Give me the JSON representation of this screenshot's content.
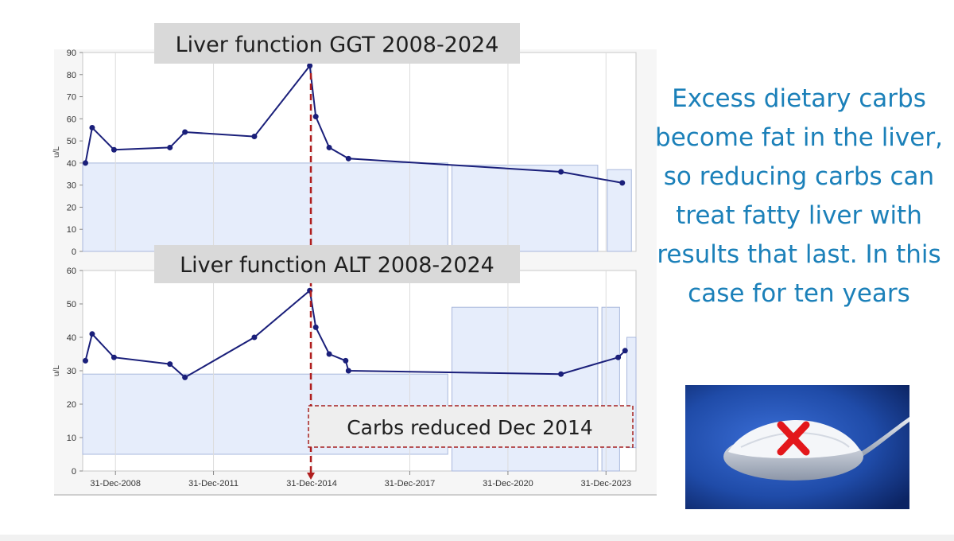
{
  "charts": [
    {
      "id": "ggt",
      "title": "Liver function GGT 2008-2024",
      "ylabel": "u/L",
      "yticks": [
        0,
        10,
        20,
        30,
        40,
        50,
        60,
        70,
        80,
        90
      ],
      "ylim": [
        0,
        90
      ]
    },
    {
      "id": "alt",
      "title": "Liver function ALT 2008-2024",
      "ylabel": "u/L",
      "yticks": [
        0,
        10,
        20,
        30,
        40,
        50,
        60
      ],
      "ylim": [
        0,
        60
      ]
    }
  ],
  "xticks": [
    "31-Dec-2008",
    "31-Dec-2011",
    "31-Dec-2014",
    "31-Dec-2017",
    "31-Dec-2020",
    "31-Dec-2023"
  ],
  "annotation": "Carbs reduced Dec 2014",
  "annotation_date": "2014-12-31",
  "right_text": "Excess dietary carbs become fat in the liver, so reducing carbs can treat fatty liver with results that last. In this case for ten years",
  "colors": {
    "line": "#1a1f7a",
    "reference_band_fill": "#e6edfb",
    "reference_band_stroke": "#a9b8dc",
    "marker_line": "#b01e1e",
    "text_accent": "#1b80b9",
    "title_box": "#d9d9d9"
  },
  "icons": {
    "photo": "sugar-spoon-photo",
    "mark": "red-x-icon"
  },
  "chart_data": [
    {
      "type": "line",
      "title": "Liver function GGT 2008-2024",
      "ylabel": "u/L",
      "ylim": [
        0,
        90
      ],
      "x_axis": "date",
      "x": [
        "2008-01-31",
        "2008-04-15",
        "2008-12-15",
        "2010-08-31",
        "2011-02-15",
        "2013-03-31",
        "2014-12-10",
        "2015-02-15",
        "2015-07-15",
        "2016-02-15",
        "2022-08-15",
        "2024-06-30"
      ],
      "values": [
        40,
        56,
        46,
        47,
        54,
        52,
        84,
        61,
        47,
        42,
        36,
        31
      ],
      "reference_ranges": [
        {
          "from": "2007-12-31",
          "to": "2019-02-28",
          "low": 0,
          "high": 40
        },
        {
          "from": "2019-04-15",
          "to": "2023-09-30",
          "low": 0,
          "high": 39
        },
        {
          "from": "2024-01-15",
          "to": "2024-10-10",
          "low": 0,
          "high": 37
        }
      ],
      "grid": true
    },
    {
      "type": "line",
      "title": "Liver function ALT 2008-2024",
      "ylabel": "u/L",
      "ylim": [
        0,
        60
      ],
      "x_axis": "date",
      "x": [
        "2008-01-31",
        "2008-04-15",
        "2008-12-15",
        "2010-08-31",
        "2011-02-15",
        "2013-03-31",
        "2014-12-10",
        "2015-02-15",
        "2015-07-15",
        "2016-01-15",
        "2016-02-15",
        "2022-08-15",
        "2024-05-15",
        "2024-07-31"
      ],
      "values": [
        33,
        41,
        34,
        32,
        28,
        40,
        54,
        43,
        35,
        33,
        30,
        29,
        34,
        36
      ],
      "reference_ranges": [
        {
          "from": "2007-12-31",
          "to": "2019-02-28",
          "low": 5,
          "high": 29
        },
        {
          "from": "2019-04-15",
          "to": "2023-09-30",
          "low": 0,
          "high": 49
        },
        {
          "from": "2023-11-15",
          "to": "2024-05-31",
          "low": 0,
          "high": 49
        },
        {
          "from": "2024-08-20",
          "to": "2024-11-30",
          "low": 7,
          "high": 40
        }
      ],
      "grid": true
    }
  ]
}
